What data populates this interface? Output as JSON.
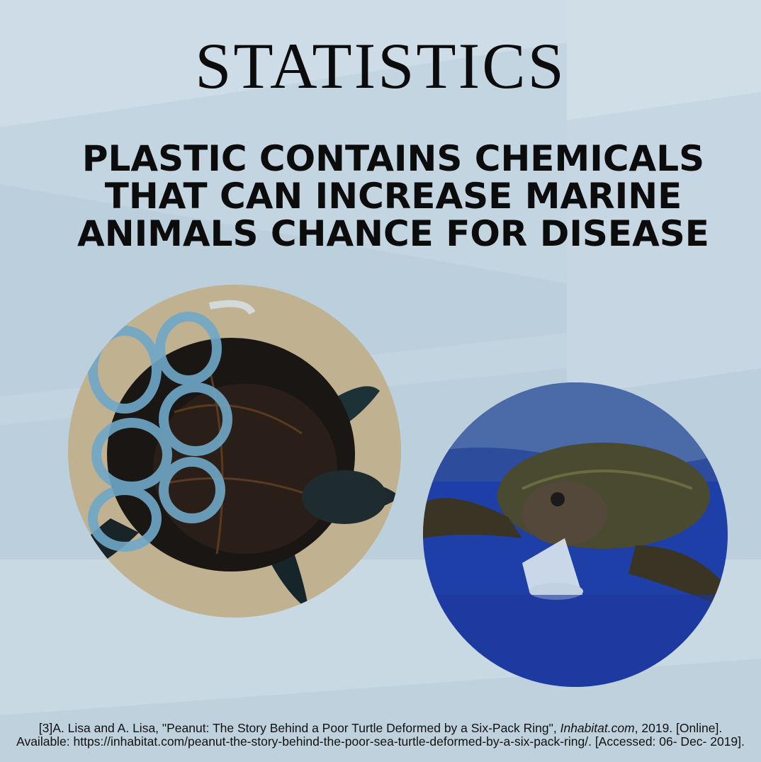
{
  "heading": {
    "title": "STATISTICS",
    "subtitle_line1": "PLASTIC CONTAINS CHEMICALS",
    "subtitle_line2": "THAT CAN INCREASE MARINE",
    "subtitle_line3": "ANIMALS CHANCE FOR DISEASE"
  },
  "images": {
    "left": "turtle-with-six-pack-ring-photo",
    "right": "turtle-eating-plastic-cup-photo"
  },
  "citation": {
    "part1": "[3]A. Lisa and A. Lisa, \"Peanut: The Story Behind a Poor Turtle Deformed by a Six-Pack Ring\", ",
    "source": "Inhabitat.com",
    "part2": ", 2019. [Online]. Available: https://inhabitat.com/peanut-the-story-behind-the-poor-sea-turtle-deformed-by-a-six-pack-ring/. [Accessed: 06- Dec- 2019]."
  },
  "colors": {
    "background": "#bccfdc",
    "text": "#0c0c0c"
  }
}
